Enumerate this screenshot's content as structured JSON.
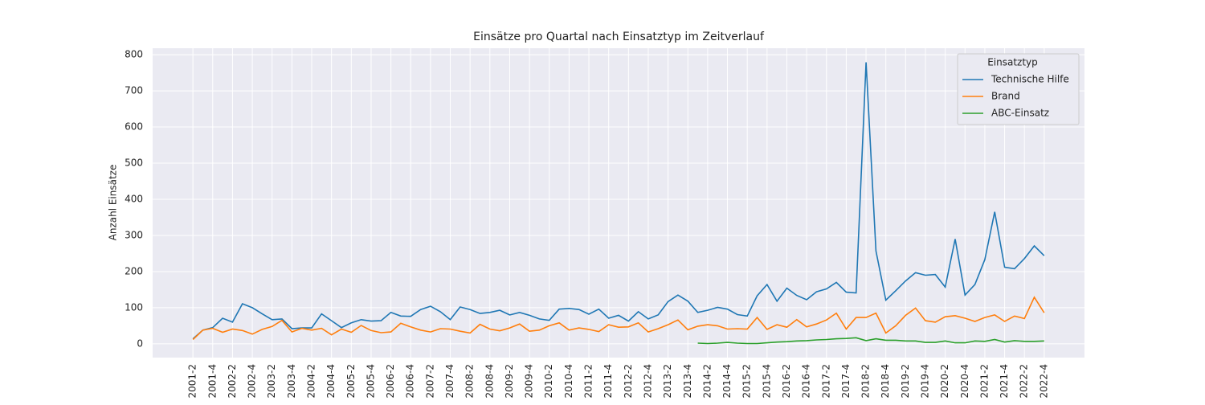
{
  "chart_data": {
    "type": "line",
    "title": "Einsätze pro Quartal nach Einsatztyp im Zeitverlauf",
    "ylabel": "Anzahl Einsätze",
    "categories": [
      "2001-2",
      null,
      "2001-4",
      null,
      "2002-2",
      null,
      "2002-4",
      null,
      "2003-2",
      null,
      "2003-4",
      null,
      "2004-2",
      null,
      "2004-4",
      null,
      "2005-2",
      null,
      "2005-4",
      null,
      "2006-2",
      null,
      "2006-4",
      null,
      "2007-2",
      null,
      "2007-4",
      null,
      "2008-2",
      null,
      "2008-4",
      null,
      "2009-2",
      null,
      "2009-4",
      null,
      "2010-2",
      null,
      "2010-4",
      null,
      "2011-2",
      null,
      "2011-4",
      null,
      "2012-2",
      null,
      "2012-4",
      null,
      "2013-2",
      null,
      "2013-4",
      null,
      "2014-2",
      null,
      "2014-4",
      null,
      "2015-2",
      null,
      "2015-4",
      null,
      "2016-2",
      null,
      "2016-4",
      null,
      "2017-2",
      null,
      "2017-4",
      null,
      "2018-2",
      null,
      "2018-4",
      null,
      "2019-2",
      null,
      "2019-4",
      null,
      "2020-2",
      null,
      "2020-4",
      null,
      "2021-2",
      null,
      "2021-4",
      null,
      "2022-2",
      null,
      "2022-4"
    ],
    "series": [
      {
        "name": "Technische Hilfe",
        "color": "#1f77b4",
        "values": [
          14,
          38,
          45,
          71,
          60,
          111,
          100,
          83,
          67,
          69,
          42,
          44,
          44,
          83,
          64,
          45,
          58,
          67,
          63,
          64,
          87,
          77,
          76,
          95,
          104,
          89,
          67,
          102,
          95,
          84,
          87,
          93,
          80,
          87,
          79,
          69,
          65,
          96,
          98,
          95,
          82,
          96,
          71,
          79,
          63,
          89,
          69,
          80,
          117,
          135,
          118,
          87,
          93,
          101,
          96,
          81,
          77,
          133,
          164,
          118,
          154,
          134,
          122,
          144,
          152,
          170,
          143,
          141,
          779,
          257,
          121,
          147,
          174,
          197,
          190,
          192,
          157,
          290,
          135,
          164,
          233,
          365,
          212,
          208,
          236,
          271,
          244
        ]
      },
      {
        "name": "Brand",
        "color": "#ff7f0e",
        "values": [
          12,
          38,
          43,
          32,
          41,
          37,
          27,
          40,
          48,
          65,
          33,
          43,
          38,
          43,
          25,
          41,
          32,
          51,
          37,
          31,
          33,
          57,
          47,
          38,
          33,
          42,
          41,
          35,
          30,
          54,
          41,
          36,
          44,
          55,
          35,
          38,
          50,
          58,
          38,
          44,
          40,
          34,
          53,
          46,
          47,
          58,
          33,
          42,
          53,
          66,
          39,
          49,
          53,
          50,
          41,
          42,
          41,
          73,
          40,
          53,
          46,
          67,
          47,
          55,
          66,
          85,
          41,
          73,
          73,
          85,
          30,
          50,
          79,
          99,
          64,
          60,
          75,
          78,
          71,
          62,
          73,
          80,
          62,
          77,
          70,
          129,
          86
        ]
      },
      {
        "name": "ABC-Einsatz",
        "color": "#2ca02c",
        "values": [
          null,
          null,
          null,
          null,
          null,
          null,
          null,
          null,
          null,
          null,
          null,
          null,
          null,
          null,
          null,
          null,
          null,
          null,
          null,
          null,
          null,
          null,
          null,
          null,
          null,
          null,
          null,
          null,
          null,
          null,
          null,
          null,
          null,
          null,
          null,
          null,
          null,
          null,
          null,
          null,
          null,
          null,
          null,
          null,
          null,
          null,
          null,
          null,
          null,
          null,
          null,
          2,
          1,
          2,
          4,
          2,
          1,
          1,
          3,
          5,
          6,
          8,
          9,
          11,
          12,
          14,
          15,
          17,
          9,
          14,
          10,
          10,
          8,
          8,
          4,
          4,
          8,
          3,
          3,
          8,
          7,
          12,
          5,
          9,
          7,
          7,
          8
        ]
      }
    ],
    "ylim": [
      -38,
      818
    ],
    "yticks": [
      0,
      100,
      200,
      300,
      400,
      500,
      600,
      700,
      800
    ],
    "grid": true,
    "legend_title": "Einsatztyp",
    "legend": "upper right"
  }
}
